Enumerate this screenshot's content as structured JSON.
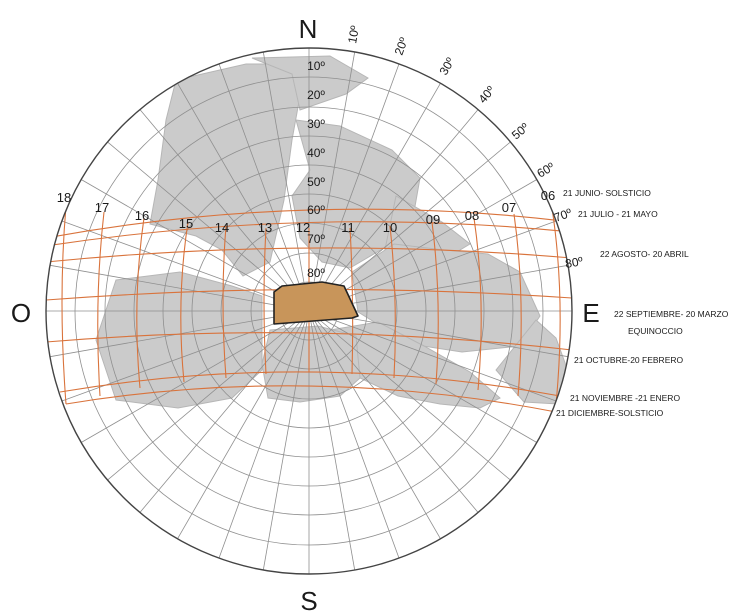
{
  "cardinals": {
    "north": "N",
    "south": "S",
    "east": "E",
    "west": "O"
  },
  "elevation_labels": [
    "10º",
    "20º",
    "30º",
    "40º",
    "50º",
    "60º",
    "70º",
    "80º"
  ],
  "azimuth_labels": [
    "10º",
    "20º",
    "30º",
    "40º",
    "50º",
    "60º",
    "70º",
    "80º"
  ],
  "hour_labels": [
    "18",
    "17",
    "16",
    "15",
    "14",
    "13",
    "12",
    "11",
    "10",
    "09",
    "08",
    "07",
    "06"
  ],
  "date_labels": [
    "21 JUNIO- SOLSTICIO",
    "21 JULIO - 21 MAYO",
    "22 AGOSTO- 20 ABRIL",
    "22 SEPTIEMBRE- 20 MARZO",
    "EQUINOCCIO",
    "21 OCTUBRE-20 FEBRERO",
    "21 NOVIEMBRE -21 ENERO",
    "21 DICIEMBRE-SOLSTICIO"
  ],
  "colors": {
    "circle": "#444444",
    "grid": "#8a8a8a",
    "sun_path": "#d9733c",
    "obstruction": "#c8c8c8",
    "site": "#c8955a"
  }
}
